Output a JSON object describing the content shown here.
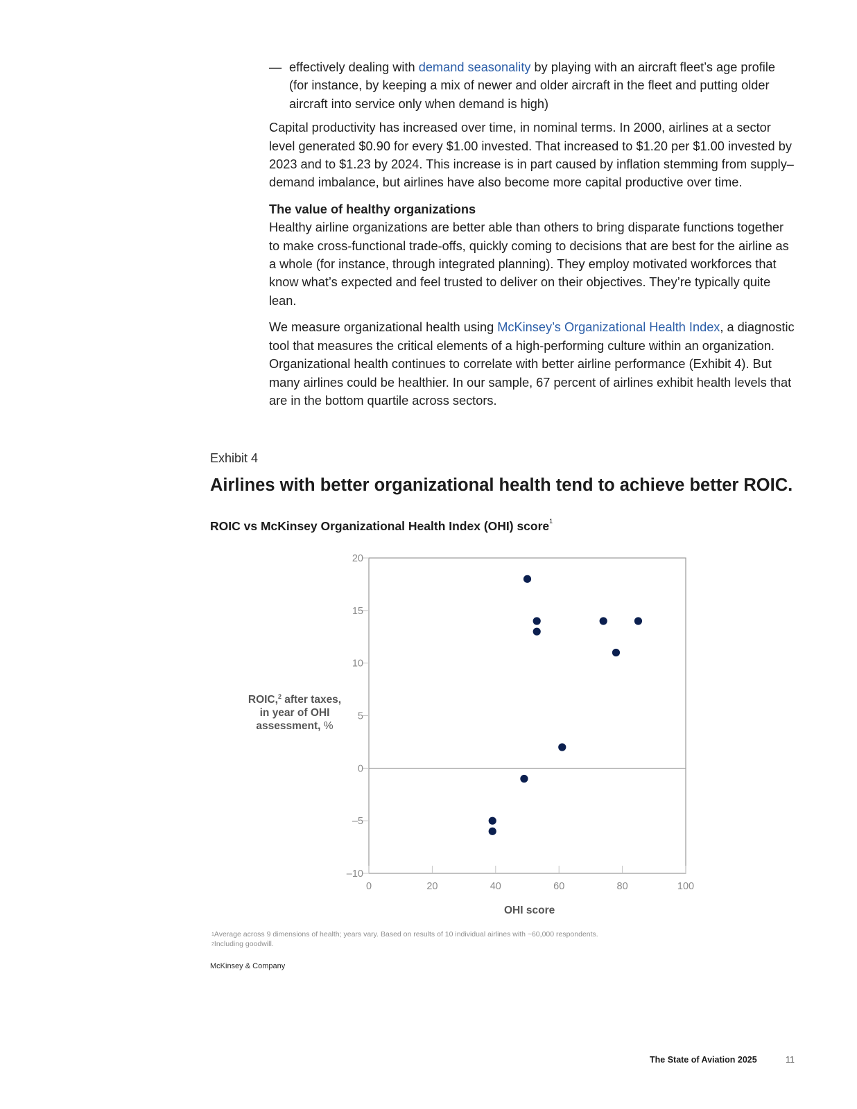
{
  "body": {
    "bullet": {
      "dash": "—",
      "text_before": "effectively dealing with ",
      "link": "demand seasonality",
      "text_after": " by playing with an aircraft fleet’s age profile (for instance, by keeping a mix of newer and older aircraft in the fleet and putting older aircraft into service only when demand is high)"
    },
    "paragraph_capital": "Capital productivity has increased over time, in nominal terms. In 2000, airlines at a sector level generated $0.90 for every $1.00 invested. That increased to $1.20 per $1.00 invested by 2023 and to $1.23 by 2024. This increase is in part caused by inflation stemming from supply–demand imbalance, but airlines have also become more capital productive over time.",
    "subheading": "The value of healthy organizations",
    "paragraph_healthy": "Healthy airline organizations are better able than others to bring disparate functions together to make cross-functional trade-offs, quickly coming to decisions that are best for the airline as a whole (for instance, through integrated planning). They employ motivated workforces that know what’s expected and feel trusted to deliver on their objectives. They’re typically quite lean.",
    "paragraph_measure": {
      "text_before": "We measure organizational health using ",
      "link": "McKinsey’s Organizational Health Index",
      "text_after": ", a diagnostic tool that measures the critical elements of a high-performing culture within an organization. Organizational health continues to correlate with better airline performance (Exhibit 4). But many airlines could be healthier. In our sample, 67 percent of airlines exhibit health levels that are in the bottom quartile across sectors."
    }
  },
  "exhibit": {
    "label": "Exhibit 4",
    "title": "Airlines with better organizational health tend to achieve better ROIC.",
    "subtitle": "ROIC vs McKinsey Organizational Health Index (OHI) score",
    "subtitle_sup": "1"
  },
  "chart_data": {
    "type": "scatter",
    "title": "ROIC vs McKinsey Organizational Health Index (OHI) score",
    "xlabel": "OHI score",
    "ylabel_main": "ROIC,",
    "ylabel_sup": "2",
    "ylabel_rest": " after taxes, in year of OHI assessment,",
    "ylabel_unit": "%",
    "xlim": [
      0,
      100
    ],
    "ylim": [
      -10,
      20
    ],
    "x_ticks": [
      "0",
      "20",
      "40",
      "60",
      "80",
      "100"
    ],
    "y_ticks": [
      "20",
      "15",
      "10",
      "5",
      "0",
      "–5",
      "–10"
    ],
    "grid": false,
    "zero_line": true,
    "marker_color": "#0b1f4f",
    "points": [
      {
        "x": 50,
        "y": 18
      },
      {
        "x": 53,
        "y": 14
      },
      {
        "x": 53,
        "y": 13
      },
      {
        "x": 74,
        "y": 14
      },
      {
        "x": 85,
        "y": 14
      },
      {
        "x": 78,
        "y": 11
      },
      {
        "x": 61,
        "y": 2
      },
      {
        "x": 49,
        "y": -1
      },
      {
        "x": 39,
        "y": -5
      },
      {
        "x": 39,
        "y": -6
      }
    ]
  },
  "footnotes": {
    "note1_sup": "1",
    "note1": "Average across 9 dimensions of health; years vary. Based on results of 10 individual airlines with ~60,000 respondents.",
    "note2_sup": "2",
    "note2": "Including goodwill."
  },
  "source": "McKinsey & Company",
  "footer": {
    "title": "The State of Aviation 2025",
    "page": "11"
  }
}
